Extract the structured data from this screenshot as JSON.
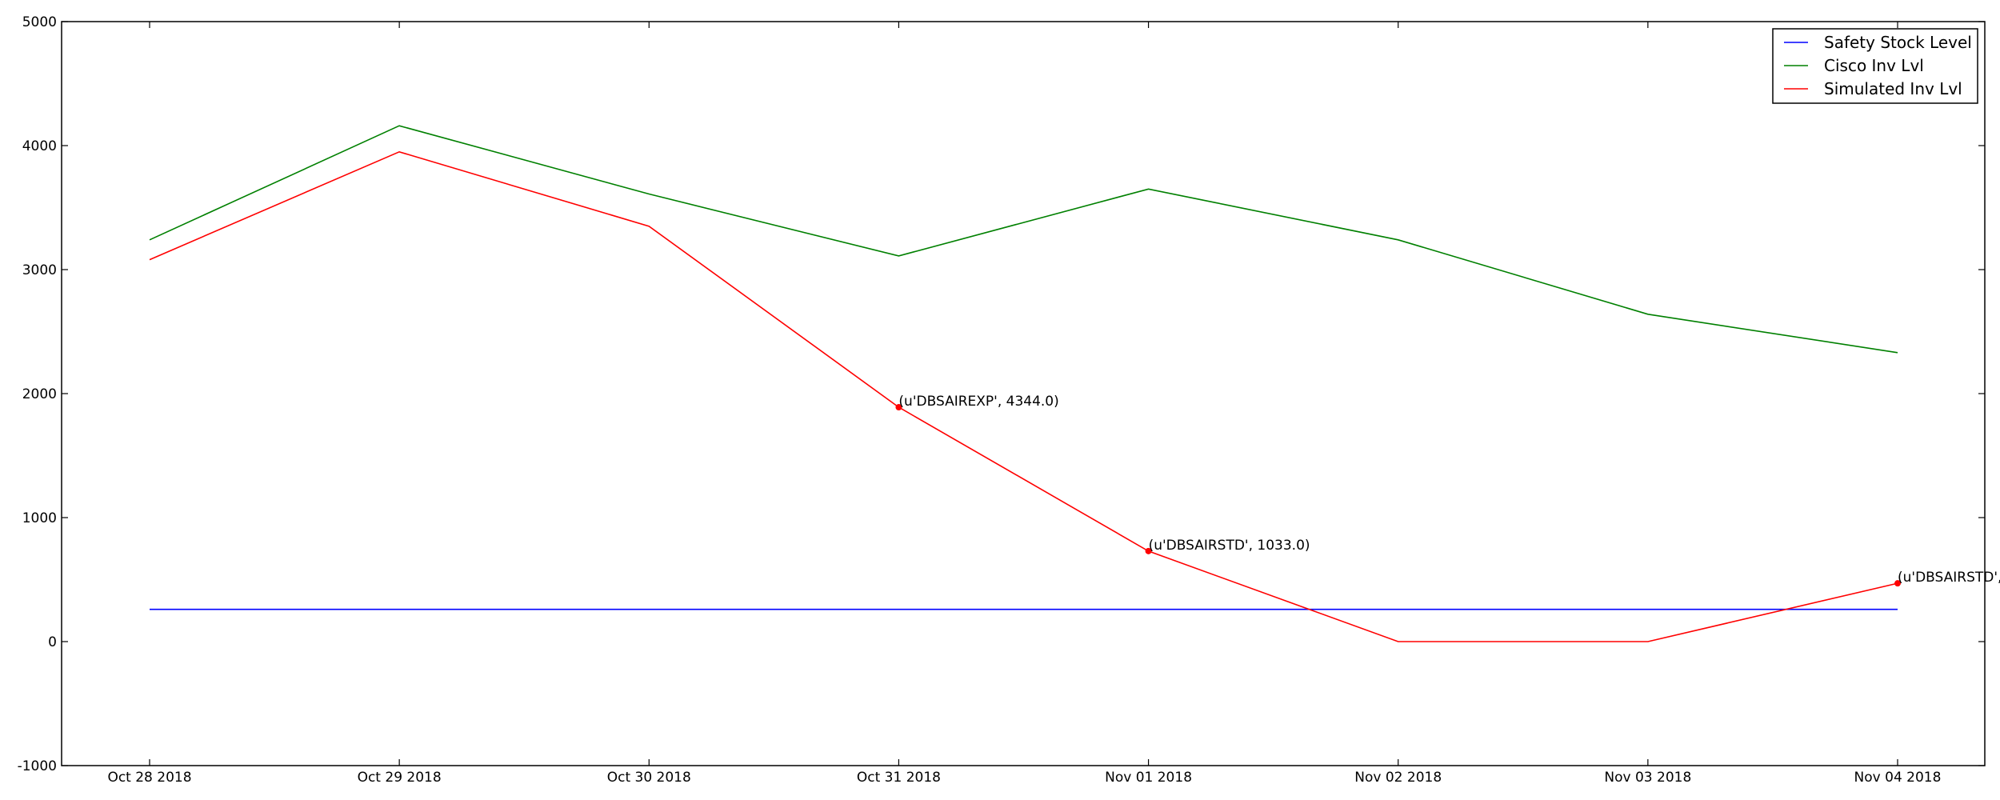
{
  "chart_data": {
    "type": "line",
    "categories": [
      "Oct 28 2018",
      "Oct 29 2018",
      "Oct 30 2018",
      "Oct 31 2018",
      "Nov 01 2018",
      "Nov 02 2018",
      "Nov 03 2018",
      "Nov 04 2018"
    ],
    "ylim": [
      -1000,
      5000
    ],
    "yticks": [
      "-1000",
      "0",
      "1000",
      "2000",
      "3000",
      "4000",
      "5000"
    ],
    "grid": false,
    "legend_position": "top-right",
    "series": [
      {
        "name": "Safety Stock Level",
        "color": "#0000ff",
        "values": [
          260,
          260,
          260,
          260,
          260,
          260,
          260,
          260
        ]
      },
      {
        "name": "Cisco Inv Lvl",
        "color": "#008000",
        "values": [
          3240,
          4160,
          3610,
          3110,
          3650,
          3240,
          2640,
          2330
        ]
      },
      {
        "name": "Simulated Inv Lvl",
        "color": "#ff0000",
        "values": [
          3080,
          3950,
          3350,
          1890,
          730,
          0,
          0,
          470
        ]
      }
    ],
    "annotations": [
      {
        "index": 3,
        "value": 1890,
        "text": "(u'DBSAIREXP', 4344.0)"
      },
      {
        "index": 4,
        "value": 730,
        "text": "(u'DBSAIRSTD', 1033.0)"
      },
      {
        "index": 7,
        "value": 470,
        "text": "(u'DBSAIRSTD',"
      }
    ]
  }
}
